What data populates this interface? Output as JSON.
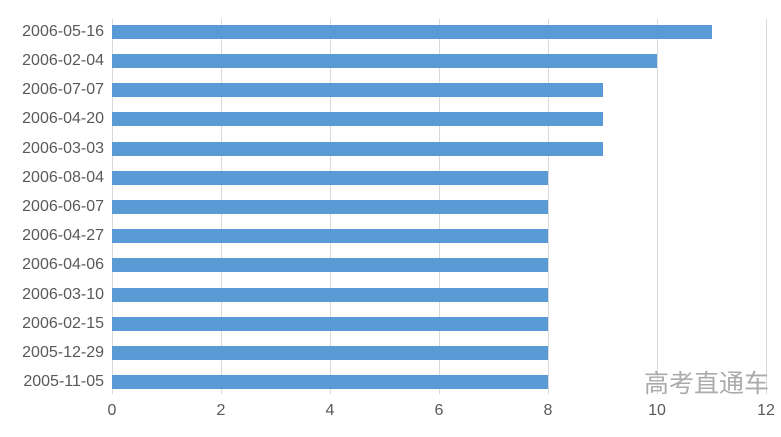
{
  "chart_data": {
    "type": "bar",
    "orientation": "horizontal",
    "title": "",
    "xlabel": "",
    "ylabel": "",
    "categories": [
      "2006-05-16",
      "2006-02-04",
      "2006-07-07",
      "2006-04-20",
      "2006-03-03",
      "2006-08-04",
      "2006-06-07",
      "2006-04-27",
      "2006-04-06",
      "2006-03-10",
      "2006-02-15",
      "2005-12-29",
      "2005-11-05"
    ],
    "values": [
      11,
      10,
      9,
      9,
      9,
      8,
      8,
      8,
      8,
      8,
      8,
      8,
      8
    ],
    "xlim": [
      0,
      12
    ],
    "xticks": [
      0,
      2,
      4,
      6,
      8,
      10,
      12
    ],
    "grid": "vertical",
    "legend": "none",
    "colors": {
      "bar": "#5B9BD5",
      "gridline": "#D9D9D9",
      "axis_label": "#595959",
      "watermark": "#ABABAB",
      "background": "#FFFFFF"
    },
    "watermark": "高考直通车"
  }
}
